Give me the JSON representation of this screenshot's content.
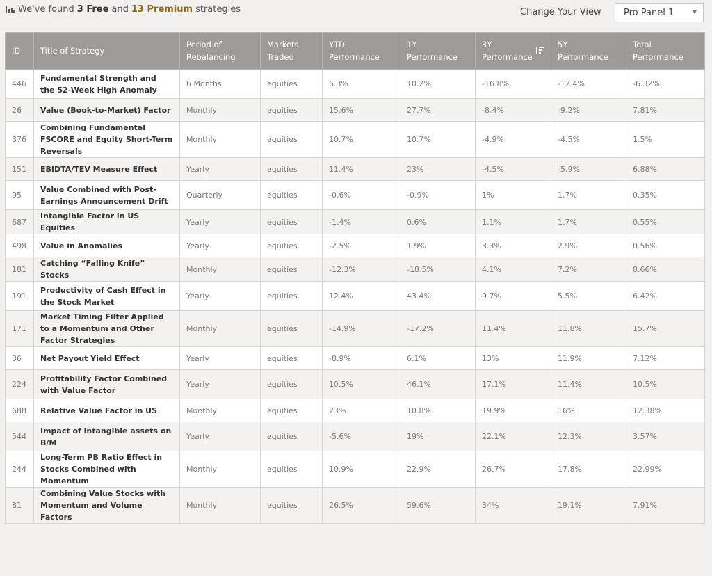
{
  "header": {
    "found_prefix": "We've found",
    "free_count": "3 Free",
    "and": "and",
    "premium_count": "13 Premium",
    "found_suffix": "strategies",
    "change_view_label": "Change Your View",
    "view_selected": "Pro Panel 1"
  },
  "table": {
    "columns": [
      "ID",
      "Title of Strategy",
      "Period of Rebalancing",
      "Markets Traded",
      "YTD Performance",
      "1Y Performance",
      "3Y Performance",
      "5Y Performance",
      "Total Performance"
    ],
    "rows": [
      {
        "id": "446",
        "title": "Fundamental Strength and the 52-Week High Anomaly",
        "period": "6 Months",
        "markets": "equities",
        "ytd": "6.3%",
        "y1": "10.2%",
        "y3": "-16.8%",
        "y5": "-12.4%",
        "total": "-6.32%"
      },
      {
        "id": "26",
        "title": "Value (Book-to-Market) Factor",
        "period": "Monthly",
        "markets": "equities",
        "ytd": "15.6%",
        "y1": "27.7%",
        "y3": "-8.4%",
        "y5": "-9.2%",
        "total": "7.81%"
      },
      {
        "id": "376",
        "title": "Combining Fundamental FSCORE and Equity Short-Term Reversals",
        "period": "Monthly",
        "markets": "equities",
        "ytd": "10.7%",
        "y1": "10.7%",
        "y3": "-4.9%",
        "y5": "-4.5%",
        "total": "1.5%"
      },
      {
        "id": "151",
        "title": "EBIDTA/TEV Measure Effect",
        "period": "Yearly",
        "markets": "equities",
        "ytd": "11.4%",
        "y1": "23%",
        "y3": "-4.5%",
        "y5": "-5.9%",
        "total": "6.88%"
      },
      {
        "id": "95",
        "title": "Value Combined with Post-Earnings Announcement Drift",
        "period": "Quarterly",
        "markets": "equities",
        "ytd": "-0.6%",
        "y1": "-0.9%",
        "y3": "1%",
        "y5": "1.7%",
        "total": "0.35%"
      },
      {
        "id": "687",
        "title": "Intangible Factor in US Equities",
        "period": "Yearly",
        "markets": "equities",
        "ytd": "-1.4%",
        "y1": "0.6%",
        "y3": "1.1%",
        "y5": "1.7%",
        "total": "0.55%"
      },
      {
        "id": "498",
        "title": "Value in Anomalies",
        "period": "Yearly",
        "markets": "equities",
        "ytd": "-2.5%",
        "y1": "1.9%",
        "y3": "3.3%",
        "y5": "2.9%",
        "total": "0.56%"
      },
      {
        "id": "181",
        "title": "Catching “Falling Knife” Stocks",
        "period": "Monthly",
        "markets": "equities",
        "ytd": "-12.3%",
        "y1": "-18.5%",
        "y3": "4.1%",
        "y5": "7.2%",
        "total": "8.66%"
      },
      {
        "id": "191",
        "title": "Productivity of Cash Effect in the Stock Market",
        "period": "Yearly",
        "markets": "equities",
        "ytd": "12.4%",
        "y1": "43.4%",
        "y3": "9.7%",
        "y5": "5.5%",
        "total": "6.42%"
      },
      {
        "id": "171",
        "title": "Market Timing Filter Applied to a Momentum and Other Factor Strategies",
        "period": "Monthly",
        "markets": "equities",
        "ytd": "-14.9%",
        "y1": "-17.2%",
        "y3": "11.4%",
        "y5": "11.8%",
        "total": "15.7%"
      },
      {
        "id": "36",
        "title": "Net Payout Yield Effect",
        "period": "Yearly",
        "markets": "equities",
        "ytd": "-8.9%",
        "y1": "6.1%",
        "y3": "13%",
        "y5": "11.9%",
        "total": "7.12%"
      },
      {
        "id": "224",
        "title": "Profitability Factor Combined with Value Factor",
        "period": "Yearly",
        "markets": "equities",
        "ytd": "10.5%",
        "y1": "46.1%",
        "y3": "17.1%",
        "y5": "11.4%",
        "total": "10.5%"
      },
      {
        "id": "688",
        "title": "Relative Value Factor in US",
        "period": "Monthly",
        "markets": "equities",
        "ytd": "23%",
        "y1": "10.8%",
        "y3": "19.9%",
        "y5": "16%",
        "total": "12.38%"
      },
      {
        "id": "544",
        "title": "Impact of intangible assets on B/M",
        "period": "Yearly",
        "markets": "equities",
        "ytd": "-5.6%",
        "y1": "19%",
        "y3": "22.1%",
        "y5": "12.3%",
        "total": "3.57%"
      },
      {
        "id": "244",
        "title": "Long-Term PB Ratio Effect in Stocks Combined with Momentum",
        "period": "Monthly",
        "markets": "equities",
        "ytd": "10.9%",
        "y1": "22.9%",
        "y3": "26.7%",
        "y5": "17.8%",
        "total": "22.99%"
      },
      {
        "id": "81",
        "title": "Combining Value Stocks with Momentum and Volume Factors",
        "period": "Monthly",
        "markets": "equities",
        "ytd": "26.5%",
        "y1": "59.6%",
        "y3": "34%",
        "y5": "19.1%",
        "total": "7.91%"
      }
    ]
  },
  "icons": {
    "chart": "bar-chart-icon",
    "sort": "sort-descending-icon",
    "caret": "chevron-down-icon"
  }
}
